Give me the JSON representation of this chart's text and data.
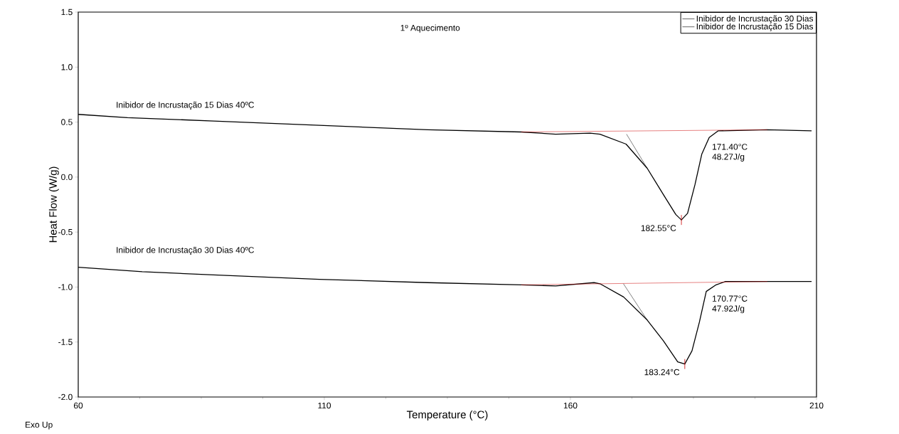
{
  "chart_data": {
    "type": "line",
    "xlabel": "Temperature (°C)",
    "ylabel": "Heat Flow (W/g)",
    "xlim": [
      60,
      210
    ],
    "xticks": [
      60,
      110,
      160,
      210
    ],
    "ylim": [
      -2.0,
      1.5
    ],
    "yticks": [
      {
        "value": -2.0,
        "label": "-2.0"
      },
      -1.5,
      {
        "value": -1.0,
        "label": "-1.0"
      },
      -0.5,
      {
        "value": 0.0,
        "label": "0.0"
      },
      0.5,
      {
        "value": 1.0,
        "label": "1.0"
      },
      1.5
    ],
    "legend": "top right",
    "grid": false,
    "series": [
      {
        "name": "Inibidor de Incrustação 30 Dias",
        "color": "#000000",
        "x": [
          60,
          73,
          87.5,
          109,
          131,
          150,
          157,
          164.8,
          166,
          170.8,
          175.6,
          178.9,
          181.8,
          183.24,
          184.7,
          186.2,
          187.6,
          189.6,
          191.5,
          200,
          209
        ],
        "values": [
          -0.82,
          -0.86,
          -0.89,
          -0.93,
          -0.96,
          -0.98,
          -0.99,
          -0.96,
          -0.97,
          -1.09,
          -1.3,
          -1.49,
          -1.68,
          -1.7,
          -1.58,
          -1.32,
          -1.04,
          -0.98,
          -0.95,
          -0.95,
          -0.95
        ]
      },
      {
        "name": "Inibidor de Incrustação 15 Dias",
        "color": "#000000",
        "x": [
          60,
          70,
          87.5,
          109,
          131,
          150,
          157,
          164,
          166,
          171.3,
          175.6,
          178.9,
          181.4,
          182.55,
          183.8,
          185.3,
          186.7,
          188.2,
          190,
          200,
          209
        ],
        "values": [
          0.57,
          0.54,
          0.51,
          0.47,
          0.43,
          0.41,
          0.39,
          0.4,
          0.39,
          0.3,
          0.08,
          -0.16,
          -0.34,
          -0.39,
          -0.33,
          -0.07,
          0.21,
          0.36,
          0.42,
          0.43,
          0.42
        ]
      },
      {
        "color": "#cc0000",
        "x": [
          150,
          200
        ],
        "values": [
          0.41,
          0.43
        ]
      },
      {
        "color": "#000000",
        "x": [
          171.4,
          175.6
        ],
        "values": [
          0.39,
          0.08
        ]
      },
      {
        "color": "#cc0000",
        "x": [
          150,
          200
        ],
        "values": [
          -0.98,
          -0.95
        ]
      },
      {
        "color": "#000000",
        "x": [
          170.77,
          175.6
        ],
        "values": [
          -0.97,
          -1.3
        ]
      }
    ],
    "annotations": [
      "1º Aquecimento",
      "Inibidor de Incrustação 15 Dias 40ºC",
      "Inibidor de Incrustação 30 Dias 40ºC",
      {
        "text": "182.55°C",
        "x": 182.55,
        "y": -0.39
      },
      "171.40°C 48.27J/g",
      {
        "text": "183.24°C",
        "x": 183.24,
        "y": -1.7
      },
      "170.77°C 47.92J/g",
      "Exo Up"
    ]
  }
}
